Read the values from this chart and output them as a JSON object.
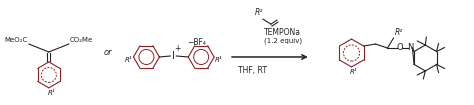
{
  "background_color": "#ffffff",
  "fig_width": 4.74,
  "fig_height": 1.05,
  "dpi": 100,
  "ring_color": "#8B2020",
  "text_color": "#222222",
  "reagent_line1": "TEMPONa",
  "reagent_line2": "(1.2 equiv)",
  "solvent_line": "THF, RT",
  "or_text": "or",
  "r1_text": "R¹",
  "r2_text": "R²",
  "meo2c_text": "MeO₂C",
  "co2me_text": "CO₂Me",
  "plus_text": "+",
  "minus_bf4": "−BF₄",
  "I_text": "I",
  "O_text": "O",
  "N_text": "N"
}
